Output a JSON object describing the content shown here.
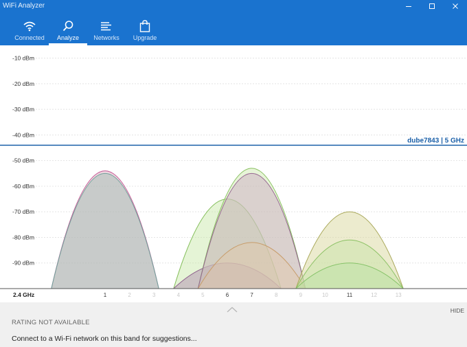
{
  "app": {
    "title": "WiFi Analyzer",
    "accent": "#1a73cf"
  },
  "window_controls": [
    "minimize-icon",
    "maximize-icon",
    "close-icon"
  ],
  "tabs": [
    {
      "label": "Connected",
      "icon": "wifi-icon"
    },
    {
      "label": "Analyze",
      "icon": "search-icon",
      "active": true
    },
    {
      "label": "Networks",
      "icon": "list-icon"
    },
    {
      "label": "Upgrade",
      "icon": "shopping-bag-icon"
    }
  ],
  "chart_data": {
    "type": "area",
    "y_ticks": [
      "-10 dBm",
      "-20 dBm",
      "-30 dBm",
      "-40 dBm",
      "-50 dBm",
      "-60 dBm",
      "-70 dBm",
      "-80 dBm",
      "-90 dBm"
    ],
    "ylim": [
      -100,
      -5
    ],
    "band_label": "2.4 GHz",
    "x_channels": [
      {
        "ch": 1,
        "label": "1",
        "bold": false
      },
      {
        "ch": 2,
        "label": "2",
        "faint": true
      },
      {
        "ch": 3,
        "label": "3",
        "faint": true
      },
      {
        "ch": 4,
        "label": "4",
        "faint": true
      },
      {
        "ch": 5,
        "label": "5",
        "faint": true
      },
      {
        "ch": 6,
        "label": "6",
        "bold": false
      },
      {
        "ch": 7,
        "label": "7",
        "bold": false
      },
      {
        "ch": 8,
        "label": "8",
        "faint": true
      },
      {
        "ch": 9,
        "label": "9",
        "faint": true
      },
      {
        "ch": 10,
        "label": "10",
        "faint": true
      },
      {
        "ch": 11,
        "label": "11",
        "bold": false
      },
      {
        "ch": 12,
        "label": "12",
        "faint": true
      },
      {
        "ch": 13,
        "label": "13",
        "faint": true
      }
    ],
    "reference_line": {
      "dbm": -44,
      "label": "dube7843 | 5 GHz",
      "color": "#1a5fa8"
    },
    "grid": true,
    "networks": [
      {
        "channel": 1,
        "dbm": -54,
        "fill": "#d7a0b6",
        "stroke": "#c45a95",
        "opacity": 0.45
      },
      {
        "channel": 1,
        "dbm": -55,
        "fill": "#a9c3b9",
        "stroke": "#6fa09a",
        "opacity": 0.55
      },
      {
        "channel": 6,
        "dbm": -65,
        "fill": "#c6e6a4",
        "stroke": "#82bd58",
        "opacity": 0.45
      },
      {
        "channel": 6,
        "dbm": -90,
        "fill": "#b28fb0",
        "stroke": "#8d5f8c",
        "opacity": 0.5
      },
      {
        "channel": 7,
        "dbm": -53,
        "fill": "#c9e6a9",
        "stroke": "#86bf5d",
        "opacity": 0.45
      },
      {
        "channel": 7,
        "dbm": -55,
        "fill": "#caa7c4",
        "stroke": "#94648f",
        "opacity": 0.45
      },
      {
        "channel": 7,
        "dbm": -82,
        "fill": "#e3c7a4",
        "stroke": "#c79c6a",
        "opacity": 0.4
      },
      {
        "channel": 11,
        "dbm": -70,
        "fill": "#d9d79e",
        "stroke": "#a9a85a",
        "opacity": 0.5
      },
      {
        "channel": 11,
        "dbm": -81,
        "fill": "#c6e3a3",
        "stroke": "#8cc164",
        "opacity": 0.45
      },
      {
        "channel": 11,
        "dbm": -90,
        "fill": "#b9e1a4",
        "stroke": "#85c267",
        "opacity": 0.45
      }
    ]
  },
  "bottom_panel": {
    "hide_label": "HIDE",
    "rating": "RATING NOT AVAILABLE",
    "suggestion": "Connect to a Wi-Fi network on this band for suggestions..."
  }
}
